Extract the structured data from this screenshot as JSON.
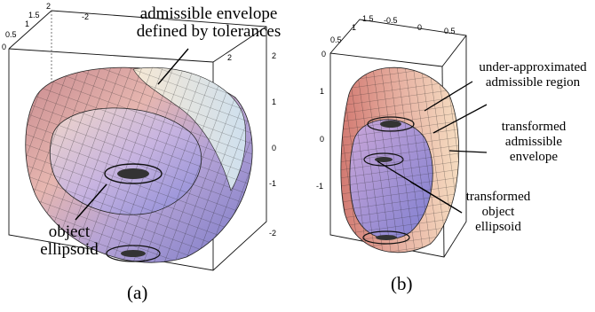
{
  "panel_a": {
    "caption": "(a)",
    "annotation_envelope_line1": "admissible envelope",
    "annotation_envelope_line2": "defined by tolerances",
    "annotation_object_line1": "object",
    "annotation_object_line2": "ellipsoid",
    "ticks_top": [
      "2",
      "-2",
      "2"
    ],
    "ticks_left": [
      "1.5",
      "1",
      "0.5",
      "0"
    ],
    "ticks_right": [
      "2",
      "1",
      "0",
      "-1",
      "-2"
    ]
  },
  "panel_b": {
    "caption": "(b)",
    "annotation_region_line1": "under-approximated",
    "annotation_region_line2": "admissible region",
    "annotation_env_line1": "transformed",
    "annotation_env_line2": "admissible",
    "annotation_env_line3": "envelope",
    "annotation_obj_line1": "transformed",
    "annotation_obj_line2": "object",
    "annotation_obj_line3": "ellipsoid",
    "ticks_top": [
      "1.5",
      "-0.5",
      "0",
      "0.5"
    ],
    "ticks_left_top": [
      "1",
      "0.5",
      "0"
    ],
    "ticks_left": [
      "1",
      "0",
      "-1"
    ]
  },
  "colors": {
    "surface_warm": "#e8a0a0",
    "surface_cool": "#9a9ae0",
    "surface_light": "#f4e6cc",
    "mesh": "#222222"
  }
}
